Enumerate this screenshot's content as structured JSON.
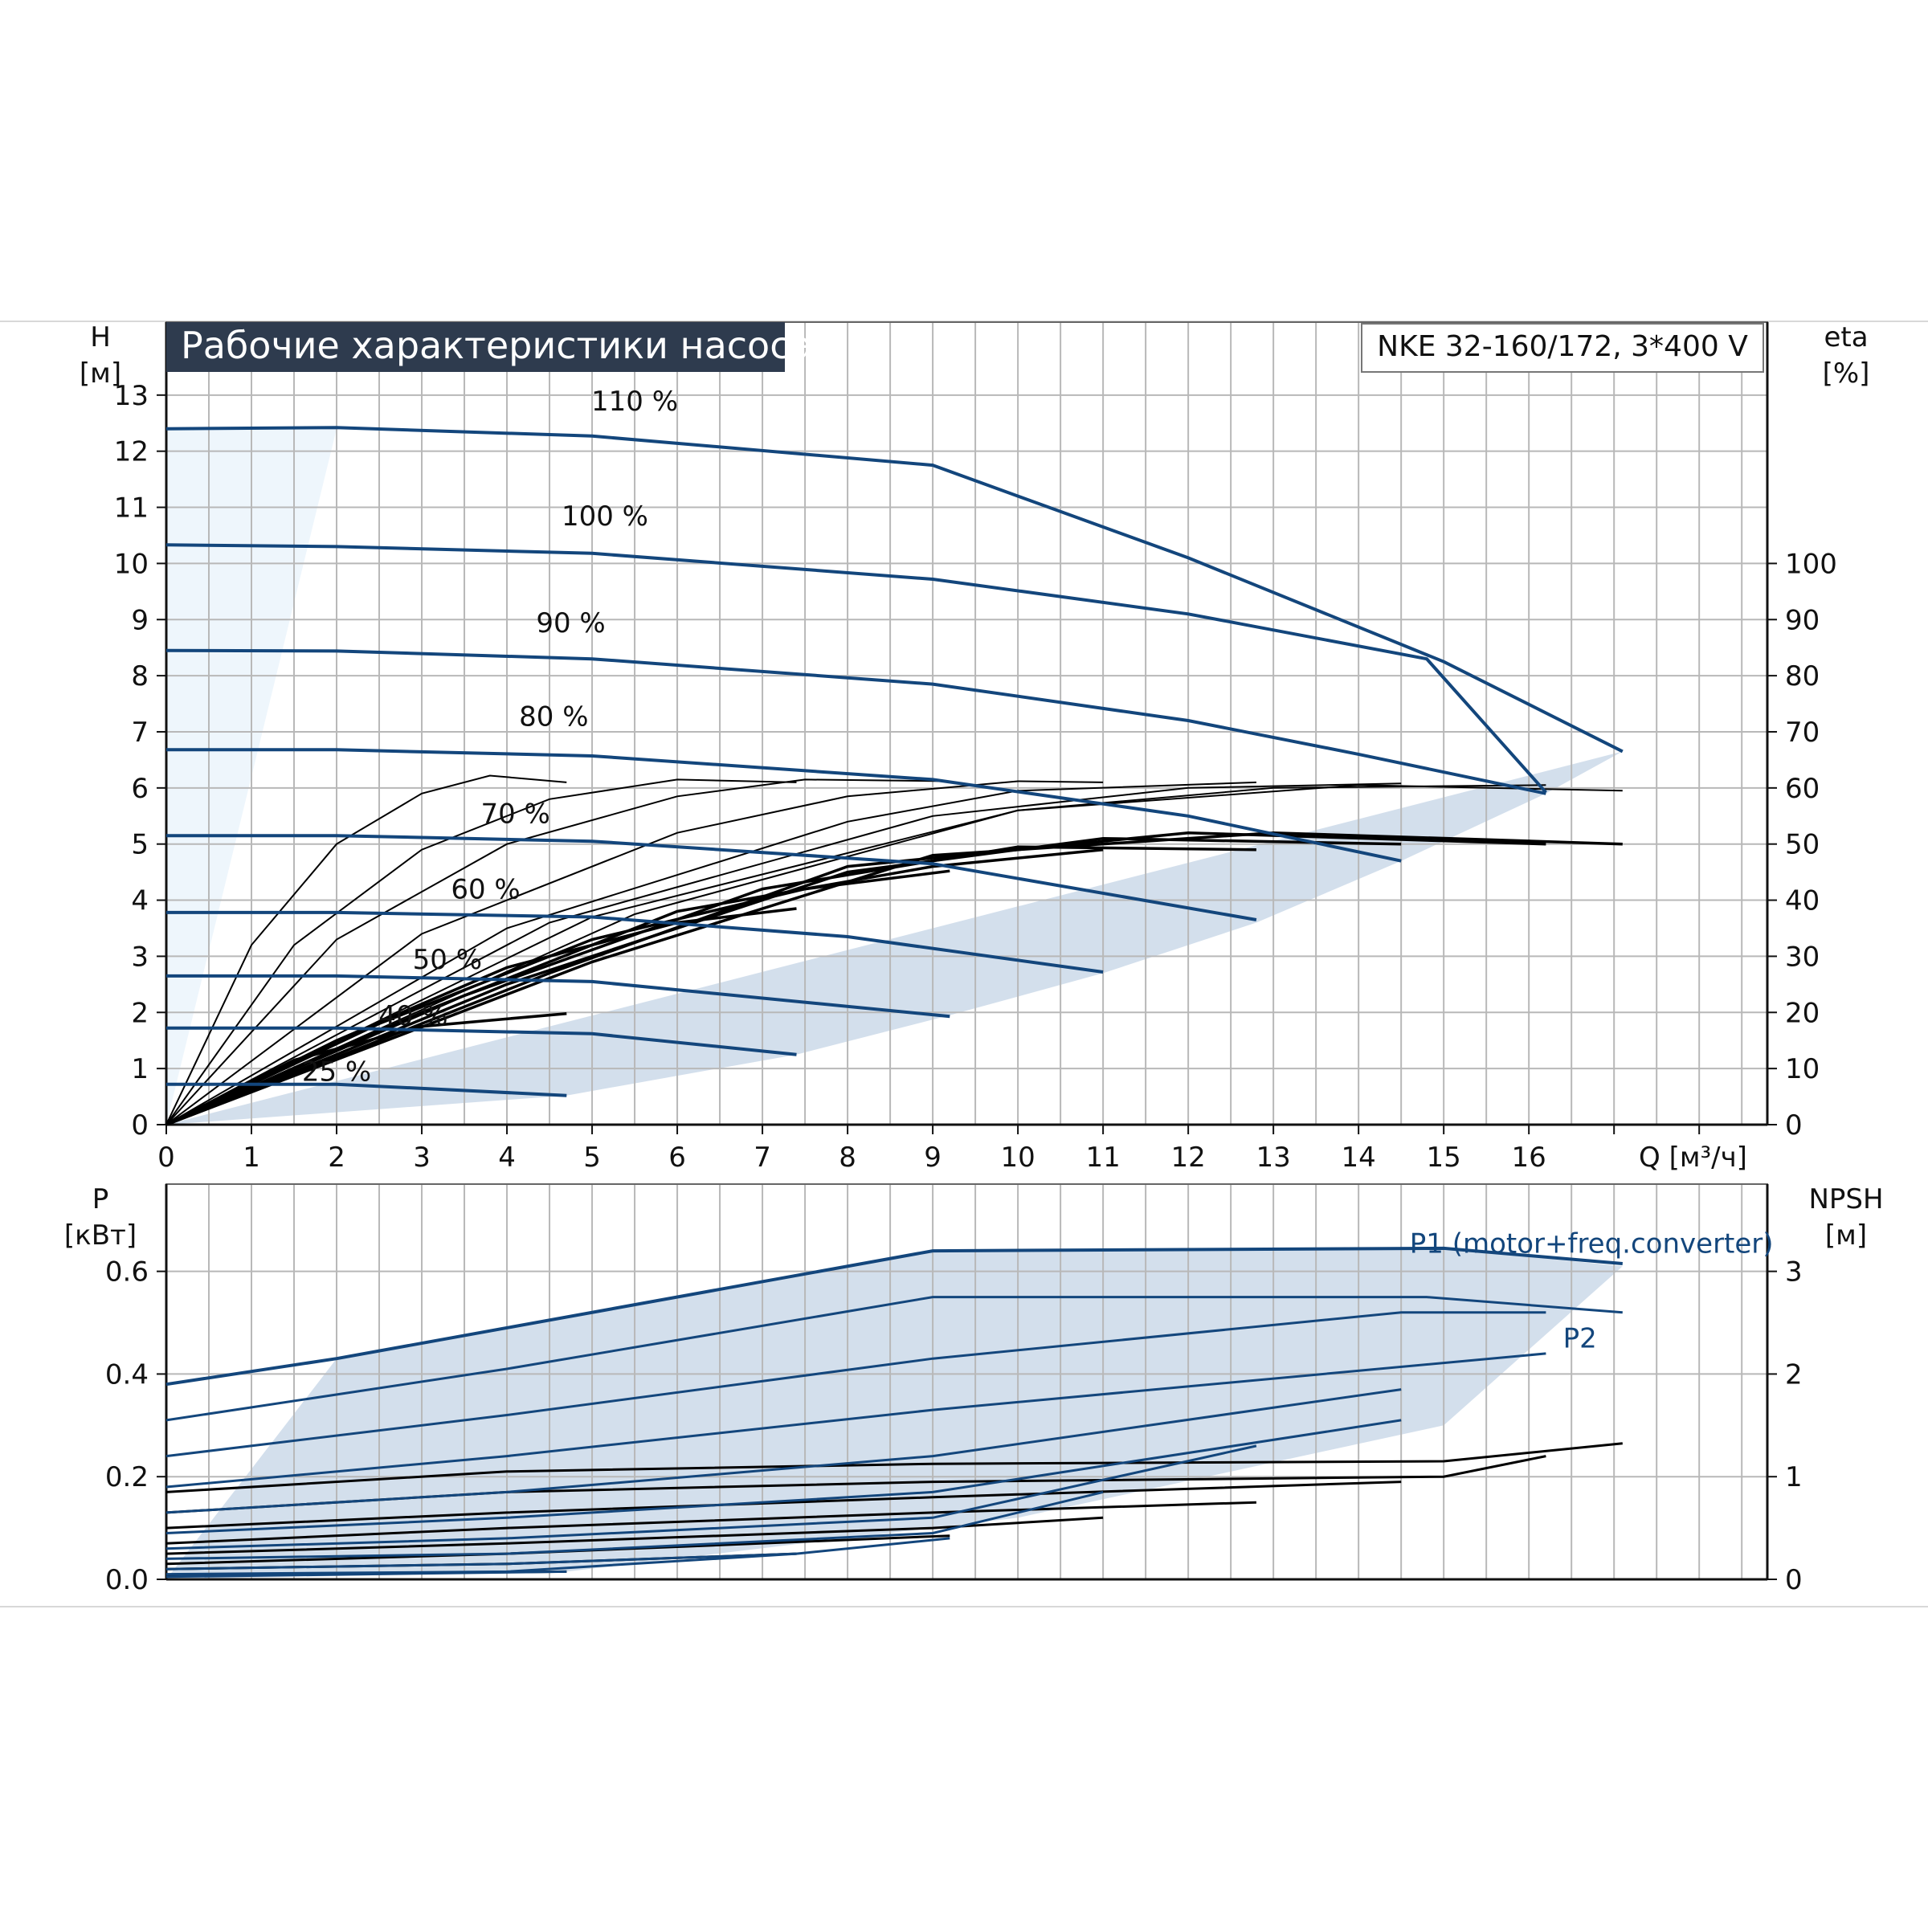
{
  "header": {
    "title": "Рабочие характеристики насоса",
    "model": "NKE 32-160/172, 3*400 V"
  },
  "colors": {
    "title_bg": "#2e3b4e",
    "envelope_fill": "#d3dfec",
    "light_fill": "#eef6fc",
    "blue_curve": "#13467c",
    "black_curve": "#000000",
    "grid": "#b8b8b8"
  },
  "chart_data": [
    {
      "id": "head",
      "type": "line",
      "title": "Рабочие характеристики насоса",
      "subtitle": "NKE 32-160/172, 3*400 V",
      "xlabel": "Q [м³/ч]",
      "ylabel": "H [м]",
      "y2label": "eta [%]",
      "ylabel_lines": [
        "H",
        "[м]"
      ],
      "y2label_lines": [
        "eta",
        "[%]"
      ],
      "xlim": [
        0,
        18.8
      ],
      "ylim": [
        0,
        14.3
      ],
      "y2lim": [
        0,
        143
      ],
      "xticks": [
        0,
        1,
        2,
        3,
        4,
        5,
        6,
        7,
        8,
        9,
        10,
        11,
        12,
        13,
        14,
        15,
        16
      ],
      "xtick_labels": [
        "0",
        "1",
        "2",
        "3",
        "4",
        "5",
        "6",
        "7",
        "8",
        "9",
        "10",
        "11",
        "12",
        "13",
        "14",
        "15",
        "16"
      ],
      "yticks": [
        0,
        1,
        2,
        3,
        4,
        5,
        6,
        7,
        8,
        9,
        10,
        11,
        12,
        13
      ],
      "y2ticks": [
        0,
        10,
        20,
        30,
        40,
        50,
        60,
        70,
        80,
        90,
        100
      ],
      "grid": true,
      "envelope": [
        [
          0,
          0
        ],
        [
          17.1,
          6.65
        ],
        [
          16.2,
          5.9
        ],
        [
          14.5,
          4.7
        ],
        [
          12.8,
          3.6
        ],
        [
          11,
          2.7
        ],
        [
          9.2,
          1.95
        ],
        [
          7.4,
          1.25
        ],
        [
          4.7,
          0.52
        ],
        [
          0,
          0
        ]
      ],
      "light_region": [
        [
          0,
          0
        ],
        [
          2,
          12.4
        ],
        [
          0,
          12.4
        ]
      ],
      "series": [
        {
          "label": "110 %",
          "label_x": 5.5,
          "label_y": 12.9,
          "points": [
            [
              0,
              12.4
            ],
            [
              2,
              12.42
            ],
            [
              5,
              12.27
            ],
            [
              9,
              11.75
            ],
            [
              12,
              10.1
            ],
            [
              15,
              8.25
            ],
            [
              17.1,
              6.65
            ]
          ]
        },
        {
          "label": "100 %",
          "label_x": 5.15,
          "label_y": 10.85,
          "points": [
            [
              0,
              10.33
            ],
            [
              2,
              10.3
            ],
            [
              5,
              10.18
            ],
            [
              9,
              9.72
            ],
            [
              12,
              9.1
            ],
            [
              14.8,
              8.3
            ],
            [
              16.2,
              5.92
            ]
          ]
        },
        {
          "label": "90 %",
          "label_x": 4.75,
          "label_y": 8.95,
          "points": [
            [
              0,
              8.45
            ],
            [
              2,
              8.44
            ],
            [
              5,
              8.3
            ],
            [
              9,
              7.85
            ],
            [
              12,
              7.2
            ],
            [
              14,
              6.6
            ],
            [
              16.2,
              5.9
            ]
          ]
        },
        {
          "label": "80 %",
          "label_x": 4.55,
          "label_y": 7.28,
          "points": [
            [
              0,
              6.68
            ],
            [
              2,
              6.68
            ],
            [
              5,
              6.57
            ],
            [
              9,
              6.15
            ],
            [
              12,
              5.5
            ],
            [
              14.5,
              4.7
            ]
          ]
        },
        {
          "label": "70 %",
          "label_x": 4.1,
          "label_y": 5.55,
          "points": [
            [
              0,
              5.15
            ],
            [
              2,
              5.15
            ],
            [
              5,
              5.05
            ],
            [
              9,
              4.65
            ],
            [
              12.8,
              3.65
            ]
          ]
        },
        {
          "label": "60 %",
          "label_x": 3.75,
          "label_y": 4.2,
          "points": [
            [
              0,
              3.78
            ],
            [
              2,
              3.78
            ],
            [
              5,
              3.7
            ],
            [
              8,
              3.35
            ],
            [
              11,
              2.72
            ]
          ]
        },
        {
          "label": "50 %",
          "label_x": 3.3,
          "label_y": 2.95,
          "points": [
            [
              0,
              2.65
            ],
            [
              2,
              2.65
            ],
            [
              5,
              2.55
            ],
            [
              9.2,
              1.93
            ]
          ]
        },
        {
          "label": "40 %",
          "label_x": 2.9,
          "label_y": 1.95,
          "points": [
            [
              0,
              1.72
            ],
            [
              2,
              1.72
            ],
            [
              5,
              1.62
            ],
            [
              7.4,
              1.25
            ]
          ]
        },
        {
          "label": "25 %",
          "label_x": 2,
          "label_y": 0.95,
          "points": [
            [
              0,
              0.72
            ],
            [
              2,
              0.72
            ],
            [
              4.7,
              0.52
            ]
          ]
        }
      ],
      "efficiency_curves": [
        {
          "pct": [
            [
              0,
              0
            ],
            [
              1,
              3.2
            ],
            [
              2,
              5
            ],
            [
              3,
              5.9
            ],
            [
              3.8,
              6.22
            ],
            [
              4.7,
              6.1
            ]
          ]
        },
        {
          "pct": [
            [
              0,
              0
            ],
            [
              1.5,
              3.2
            ],
            [
              3,
              4.9
            ],
            [
              4.5,
              5.8
            ],
            [
              6,
              6.15
            ],
            [
              7.4,
              6.1
            ]
          ]
        },
        {
          "pct": [
            [
              0,
              0
            ],
            [
              2,
              3.3
            ],
            [
              4,
              5
            ],
            [
              6,
              5.85
            ],
            [
              7.5,
              6.15
            ],
            [
              9.2,
              6.12
            ]
          ]
        },
        {
          "pct": [
            [
              0,
              0
            ],
            [
              3,
              3.4
            ],
            [
              6,
              5.2
            ],
            [
              8,
              5.85
            ],
            [
              10,
              6.12
            ],
            [
              11,
              6.1
            ]
          ]
        },
        {
          "pct": [
            [
              0,
              0
            ],
            [
              4,
              3.5
            ],
            [
              8,
              5.4
            ],
            [
              10,
              5.95
            ],
            [
              12.8,
              6.1
            ]
          ]
        },
        {
          "pct": [
            [
              0,
              0
            ],
            [
              4.5,
              3.6
            ],
            [
              9,
              5.5
            ],
            [
              12,
              6
            ],
            [
              14.5,
              6.08
            ]
          ]
        },
        {
          "pct": [
            [
              0,
              0
            ],
            [
              5,
              3.7
            ],
            [
              10,
              5.6
            ],
            [
              13,
              6
            ],
            [
              16.2,
              6.05
            ]
          ]
        },
        {
          "pct": [
            [
              0,
              0
            ],
            [
              5.5,
              3.75
            ],
            [
              10,
              5.6
            ],
            [
              14,
              6.05
            ],
            [
              17.1,
              5.95
            ]
          ]
        },
        {
          "pct": [
            [
              0,
              0
            ],
            [
              1.5,
              1.15
            ],
            [
              3,
              1.75
            ],
            [
              4.7,
              1.98
            ]
          ]
        },
        {
          "pct": [
            [
              0,
              0
            ],
            [
              2,
              1.5
            ],
            [
              4,
              2.8
            ],
            [
              6,
              3.6
            ],
            [
              7.4,
              3.85
            ]
          ]
        },
        {
          "pct": [
            [
              0,
              0
            ],
            [
              2.5,
              1.8
            ],
            [
              5,
              3.3
            ],
            [
              7.5,
              4.2
            ],
            [
              9.2,
              4.52
            ]
          ]
        },
        {
          "pct": [
            [
              0,
              0
            ],
            [
              3,
              2
            ],
            [
              6,
              3.8
            ],
            [
              9,
              4.6
            ],
            [
              11,
              4.9
            ]
          ]
        },
        {
          "pct": [
            [
              0,
              0
            ],
            [
              3.5,
              2.3
            ],
            [
              7,
              4.2
            ],
            [
              10,
              4.95
            ],
            [
              12.8,
              4.9
            ]
          ]
        },
        {
          "pct": [
            [
              0,
              0
            ],
            [
              4,
              2.5
            ],
            [
              8,
              4.5
            ],
            [
              11,
              5.1
            ],
            [
              14.5,
              5
            ]
          ]
        },
        {
          "pct": [
            [
              0,
              0
            ],
            [
              4.5,
              2.7
            ],
            [
              8,
              4.6
            ],
            [
              12,
              5.2
            ],
            [
              16.2,
              5
            ]
          ]
        },
        {
          "pct": [
            [
              0,
              0
            ],
            [
              5,
              2.9
            ],
            [
              9,
              4.8
            ],
            [
              13,
              5.2
            ],
            [
              17.1,
              5
            ]
          ]
        }
      ]
    },
    {
      "id": "power",
      "type": "line",
      "xlabel": "Q [м³/ч]",
      "ylabel": "P [кВт]",
      "y2label": "NPSH [м]",
      "ylabel_lines": [
        "P",
        "[кВт]"
      ],
      "y2label_lines": [
        "NPSH",
        "[м]"
      ],
      "xlim": [
        0,
        18.8
      ],
      "ylim": [
        0,
        0.77
      ],
      "y2lim": [
        0,
        3.85
      ],
      "yticks": [
        0.0,
        0.2,
        0.4,
        0.6
      ],
      "ytick_labels": [
        "0.0",
        "0.2",
        "0.4",
        "0.6"
      ],
      "y2ticks": [
        0,
        1,
        2,
        3
      ],
      "grid": true,
      "annotations": [
        {
          "text": "P1 (motor+freq.converter)",
          "x": 14.6,
          "y": 0.655
        },
        {
          "text": "P2",
          "x": 16.4,
          "y": 0.47
        }
      ],
      "envelope": [
        [
          0,
          0
        ],
        [
          2,
          0.43
        ],
        [
          9,
          0.64
        ],
        [
          15,
          0.645
        ],
        [
          17.1,
          0.61
        ],
        [
          15,
          0.3
        ],
        [
          10,
          0.12
        ],
        [
          4.7,
          0.015
        ],
        [
          0,
          0
        ]
      ],
      "p1_curves": [
        [
          [
            0,
            0.38
          ],
          [
            2,
            0.43
          ],
          [
            9,
            0.64
          ],
          [
            15,
            0.645
          ],
          [
            17.1,
            0.615
          ]
        ],
        [
          [
            0,
            0.31
          ],
          [
            4,
            0.41
          ],
          [
            9,
            0.55
          ],
          [
            14.8,
            0.55
          ],
          [
            17.1,
            0.52
          ]
        ],
        [
          [
            0,
            0.24
          ],
          [
            4,
            0.32
          ],
          [
            9,
            0.43
          ],
          [
            14.5,
            0.52
          ],
          [
            16.2,
            0.52
          ]
        ],
        [
          [
            0,
            0.18
          ],
          [
            4,
            0.24
          ],
          [
            9,
            0.33
          ],
          [
            16.2,
            0.44
          ]
        ],
        [
          [
            0,
            0.13
          ],
          [
            4,
            0.17
          ],
          [
            9,
            0.24
          ],
          [
            14.5,
            0.37
          ]
        ],
        [
          [
            0,
            0.09
          ],
          [
            4,
            0.12
          ],
          [
            9,
            0.17
          ],
          [
            14.5,
            0.31
          ]
        ],
        [
          [
            0,
            0.06
          ],
          [
            4,
            0.08
          ],
          [
            9,
            0.12
          ],
          [
            12.8,
            0.26
          ]
        ],
        [
          [
            0,
            0.04
          ],
          [
            4,
            0.05
          ],
          [
            9,
            0.09
          ],
          [
            11,
            0.17
          ]
        ],
        [
          [
            0,
            0.02
          ],
          [
            4,
            0.03
          ],
          [
            7.4,
            0.05
          ],
          [
            9.2,
            0.08
          ]
        ],
        [
          [
            0,
            0.01
          ],
          [
            4,
            0.015
          ],
          [
            7.4,
            0.05
          ]
        ],
        [
          [
            0,
            0.005
          ],
          [
            4.7,
            0.015
          ]
        ]
      ],
      "p2_curves": [
        [
          [
            0,
            0.17
          ],
          [
            4,
            0.21
          ],
          [
            9,
            0.225
          ],
          [
            15,
            0.23
          ],
          [
            17.1,
            0.265
          ]
        ],
        [
          [
            0,
            0.13
          ],
          [
            4,
            0.17
          ],
          [
            9,
            0.19
          ],
          [
            15,
            0.2
          ],
          [
            16.2,
            0.24
          ]
        ],
        [
          [
            0,
            0.1
          ],
          [
            4,
            0.13
          ],
          [
            9,
            0.16
          ],
          [
            14.5,
            0.19
          ]
        ],
        [
          [
            0,
            0.07
          ],
          [
            4,
            0.1
          ],
          [
            9,
            0.13
          ],
          [
            12.8,
            0.15
          ]
        ],
        [
          [
            0,
            0.05
          ],
          [
            4,
            0.07
          ],
          [
            9,
            0.1
          ],
          [
            11,
            0.12
          ]
        ],
        [
          [
            0,
            0.03
          ],
          [
            4,
            0.05
          ],
          [
            9.2,
            0.085
          ]
        ],
        [
          [
            0,
            0.02
          ],
          [
            4,
            0.03
          ],
          [
            7.4,
            0.05
          ]
        ],
        [
          [
            0,
            0.008
          ],
          [
            4.7,
            0.015
          ]
        ]
      ]
    }
  ]
}
